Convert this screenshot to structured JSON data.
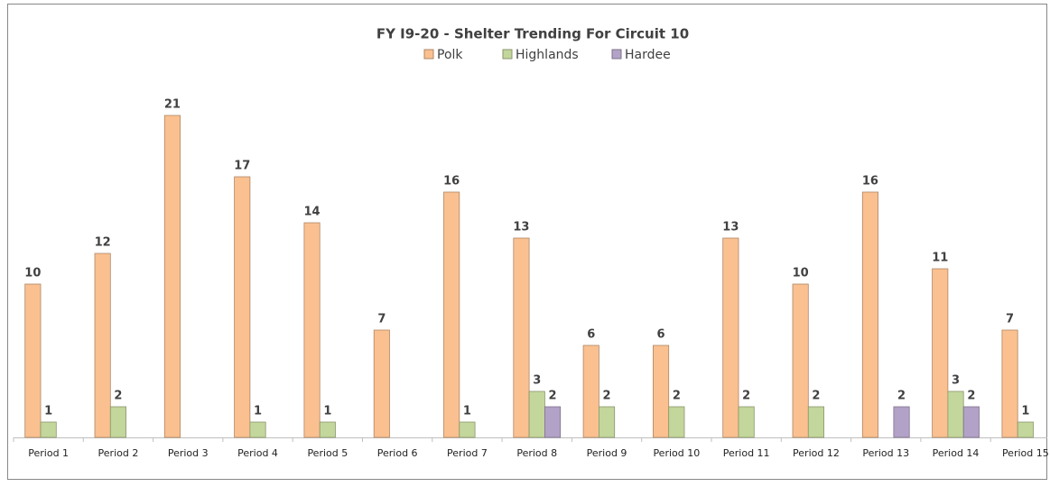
{
  "chart_data": {
    "type": "bar",
    "title": "FY I9-20 - Shelter Trending For Circuit 10",
    "categories": [
      "Period 1",
      "Period 2",
      "Period 3",
      "Period 4",
      "Period 5",
      "Period 6",
      "Period 7",
      "Period 8",
      "Period 9",
      "Period 10",
      "Period 11",
      "Period 12",
      "Period 13",
      "Period 14",
      "Period 15"
    ],
    "series": [
      {
        "name": "Polk",
        "color": "#fac090",
        "values": [
          10,
          12,
          21,
          17,
          14,
          7,
          16,
          13,
          6,
          6,
          13,
          10,
          16,
          11,
          7
        ]
      },
      {
        "name": "Highlands",
        "color": "#c3d69b",
        "values": [
          1,
          2,
          null,
          1,
          1,
          null,
          1,
          3,
          2,
          2,
          2,
          2,
          null,
          3,
          1
        ]
      },
      {
        "name": "Hardee",
        "color": "#b3a2c7",
        "values": [
          null,
          null,
          null,
          null,
          null,
          null,
          null,
          2,
          null,
          null,
          null,
          null,
          2,
          2,
          null
        ]
      }
    ],
    "legend": "top"
  }
}
